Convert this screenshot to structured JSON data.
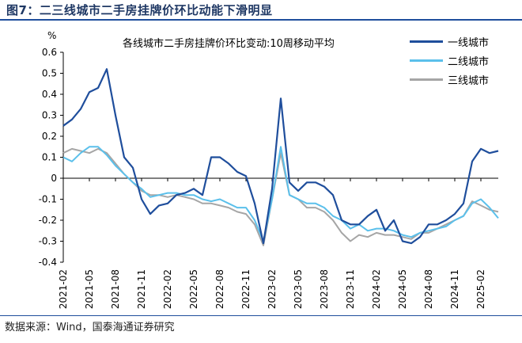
{
  "figure": {
    "title": "图7：二三线城市二手房挂牌价环比动能下滑明显",
    "source": "数据来源：Wind，国泰海通证券研究"
  },
  "colors": {
    "tier1": "#1f4e9c",
    "tier2": "#5bc0eb",
    "tier3": "#a6a6a6",
    "brand": "#1f4e9c"
  },
  "chart_data": {
    "type": "line",
    "title": "各线城市二手房挂牌价环比变动:10周移动平均",
    "ylabel": "%",
    "xlabel": "",
    "ylim": [
      -0.4,
      0.6
    ],
    "yticks": [
      "0.6",
      "0.5",
      "0.4",
      "0.3",
      "0.2",
      "0.1",
      "0",
      "-0.1",
      "-0.2",
      "-0.3",
      "-0.4"
    ],
    "xrange": [
      "2021-02",
      "2025-04"
    ],
    "xticks": [
      "2021-02",
      "2021-05",
      "2021-08",
      "2021-11",
      "2022-02",
      "2022-05",
      "2022-08",
      "2022-11",
      "2023-02",
      "2023-05",
      "2023-08",
      "2023-11",
      "2024-02",
      "2024-05",
      "2024-08",
      "2024-11",
      "2025-02"
    ],
    "grid": false,
    "legend_position": "top-right",
    "x": [
      "2021-02",
      "2021-03",
      "2021-04",
      "2021-05",
      "2021-06",
      "2021-07",
      "2021-08",
      "2021-09",
      "2021-10",
      "2021-11",
      "2021-12",
      "2022-01",
      "2022-02",
      "2022-03",
      "2022-04",
      "2022-05",
      "2022-06",
      "2022-07",
      "2022-08",
      "2022-09",
      "2022-10",
      "2022-11",
      "2022-12",
      "2023-01",
      "2023-02",
      "2023-03",
      "2023-04",
      "2023-05",
      "2023-06",
      "2023-07",
      "2023-08",
      "2023-09",
      "2023-10",
      "2023-11",
      "2023-12",
      "2024-01",
      "2024-02",
      "2024-03",
      "2024-04",
      "2024-05",
      "2024-06",
      "2024-07",
      "2024-08",
      "2024-09",
      "2024-10",
      "2024-11",
      "2024-12",
      "2025-01",
      "2025-02",
      "2025-03",
      "2025-04"
    ],
    "series": [
      {
        "name": "一线城市",
        "values": [
          0.25,
          0.28,
          0.33,
          0.41,
          0.43,
          0.52,
          0.3,
          0.1,
          0.05,
          -0.1,
          -0.17,
          -0.13,
          -0.12,
          -0.08,
          -0.07,
          -0.05,
          -0.08,
          0.1,
          0.1,
          0.07,
          0.03,
          0.01,
          -0.12,
          -0.31,
          -0.05,
          0.38,
          -0.02,
          -0.06,
          -0.02,
          -0.02,
          -0.04,
          -0.08,
          -0.2,
          -0.22,
          -0.22,
          -0.18,
          -0.15,
          -0.25,
          -0.2,
          -0.3,
          -0.31,
          -0.28,
          -0.22,
          -0.22,
          -0.2,
          -0.17,
          -0.12,
          0.08,
          0.14,
          0.12,
          0.13
        ]
      },
      {
        "name": "二线城市",
        "values": [
          0.1,
          0.08,
          0.12,
          0.15,
          0.15,
          0.11,
          0.06,
          0.02,
          -0.02,
          -0.05,
          -0.09,
          -0.08,
          -0.07,
          -0.07,
          -0.08,
          -0.08,
          -0.1,
          -0.11,
          -0.1,
          -0.12,
          -0.14,
          -0.14,
          -0.2,
          -0.3,
          -0.1,
          0.15,
          -0.08,
          -0.1,
          -0.12,
          -0.12,
          -0.14,
          -0.18,
          -0.2,
          -0.24,
          -0.22,
          -0.25,
          -0.24,
          -0.24,
          -0.25,
          -0.27,
          -0.28,
          -0.26,
          -0.25,
          -0.24,
          -0.23,
          -0.2,
          -0.18,
          -0.12,
          -0.1,
          -0.14,
          -0.19
        ]
      },
      {
        "name": "三线城市",
        "values": [
          0.12,
          0.14,
          0.13,
          0.12,
          0.14,
          0.12,
          0.07,
          0.02,
          -0.02,
          -0.06,
          -0.08,
          -0.08,
          -0.09,
          -0.08,
          -0.09,
          -0.1,
          -0.12,
          -0.12,
          -0.13,
          -0.14,
          -0.16,
          -0.17,
          -0.22,
          -0.32,
          -0.1,
          0.12,
          -0.08,
          -0.1,
          -0.14,
          -0.14,
          -0.16,
          -0.2,
          -0.26,
          -0.3,
          -0.27,
          -0.28,
          -0.26,
          -0.27,
          -0.27,
          -0.28,
          -0.29,
          -0.26,
          -0.26,
          -0.24,
          -0.22,
          -0.2,
          -0.18,
          -0.11,
          -0.13,
          -0.15,
          -0.16
        ]
      }
    ]
  }
}
